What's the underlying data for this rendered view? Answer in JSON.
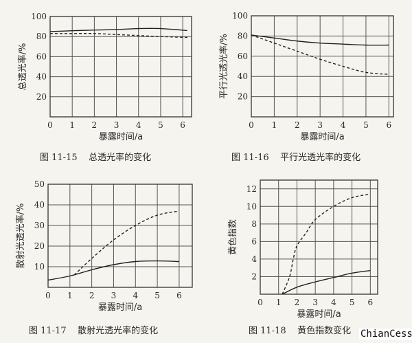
{
  "chart_data": [
    {
      "type": "line",
      "title": "",
      "caption": "图 11-15    总透光率的变化",
      "xlabel": "暴露时间/a",
      "ylabel": "总透光率/%",
      "xlim": [
        0,
        6.4
      ],
      "ylim": [
        0,
        100
      ],
      "xticks": [
        0,
        1,
        2,
        3,
        4,
        5,
        6
      ],
      "yticks": [
        20,
        40,
        60,
        80,
        100
      ],
      "grid": true,
      "series": [
        {
          "style": "solid",
          "x": [
            0,
            1,
            2,
            3,
            4,
            5,
            6.2
          ],
          "y": [
            85,
            85.8,
            86.5,
            87,
            88,
            88,
            86
          ]
        },
        {
          "style": "dashed",
          "x": [
            0,
            1,
            2,
            3,
            4,
            5,
            6.3
          ],
          "y": [
            83,
            83,
            83,
            82,
            81,
            80,
            79
          ]
        }
      ]
    },
    {
      "type": "line",
      "title": "",
      "caption": "图 11-16    平行光透光率的变化",
      "xlabel": "暴露时间/a",
      "ylabel": "平行光透光率/%",
      "xlim": [
        0,
        6.2
      ],
      "ylim": [
        0,
        100
      ],
      "xticks": [
        0,
        1,
        2,
        3,
        4,
        5,
        6
      ],
      "yticks": [
        20,
        40,
        60,
        80,
        100
      ],
      "grid": true,
      "series": [
        {
          "style": "solid",
          "x": [
            0,
            1,
            2,
            3,
            4,
            5,
            6
          ],
          "y": [
            81,
            78,
            75,
            73,
            72,
            71,
            71
          ]
        },
        {
          "style": "dashed",
          "x": [
            0,
            1,
            2,
            3,
            4,
            5,
            6
          ],
          "y": [
            81,
            73,
            65,
            57,
            50,
            44,
            42
          ]
        }
      ]
    },
    {
      "type": "line",
      "title": "",
      "caption": "图 11-17    散射光透光率的变化",
      "xlabel": "暴露时间/a",
      "ylabel": "散射光透光率/%",
      "xlim": [
        0,
        6.6
      ],
      "ylim": [
        0,
        50
      ],
      "xticks": [
        0,
        1,
        2,
        3,
        4,
        5,
        6
      ],
      "yticks": [
        10,
        20,
        30,
        40,
        50
      ],
      "grid": true,
      "series": [
        {
          "style": "solid",
          "x": [
            0,
            1,
            2,
            3,
            4,
            5,
            6
          ],
          "y": [
            3.5,
            5.5,
            8.5,
            11,
            12.5,
            12.8,
            12.5
          ]
        },
        {
          "style": "dashed",
          "x": [
            1.2,
            2,
            3,
            4,
            5,
            6
          ],
          "y": [
            6,
            14,
            23,
            30,
            35,
            37
          ]
        }
      ]
    },
    {
      "type": "line",
      "title": "",
      "caption": "图 11-18    黄色指数变化",
      "xlabel": "暴露时间/a",
      "ylabel": "黄色指数",
      "xlim": [
        0,
        6.4
      ],
      "ylim": [
        0,
        13
      ],
      "xticks": [
        0,
        1,
        2,
        3,
        4,
        5,
        6
      ],
      "yticks": [
        2,
        4,
        6,
        8,
        10,
        12
      ],
      "grid": true,
      "series": [
        {
          "style": "solid",
          "x": [
            1.2,
            2,
            3,
            4,
            5,
            6
          ],
          "y": [
            0,
            0.8,
            1.4,
            1.9,
            2.4,
            2.7
          ]
        },
        {
          "style": "dashed",
          "x": [
            1.2,
            1.6,
            1.8,
            2,
            2.5,
            3,
            4,
            5,
            6
          ],
          "y": [
            0,
            2,
            4,
            5.5,
            7,
            8.5,
            10,
            11,
            11.4
          ]
        }
      ]
    }
  ],
  "watermark": "ChianCess",
  "colors": {
    "background": "#f6f4ef",
    "ink": "#2a2a2a"
  }
}
